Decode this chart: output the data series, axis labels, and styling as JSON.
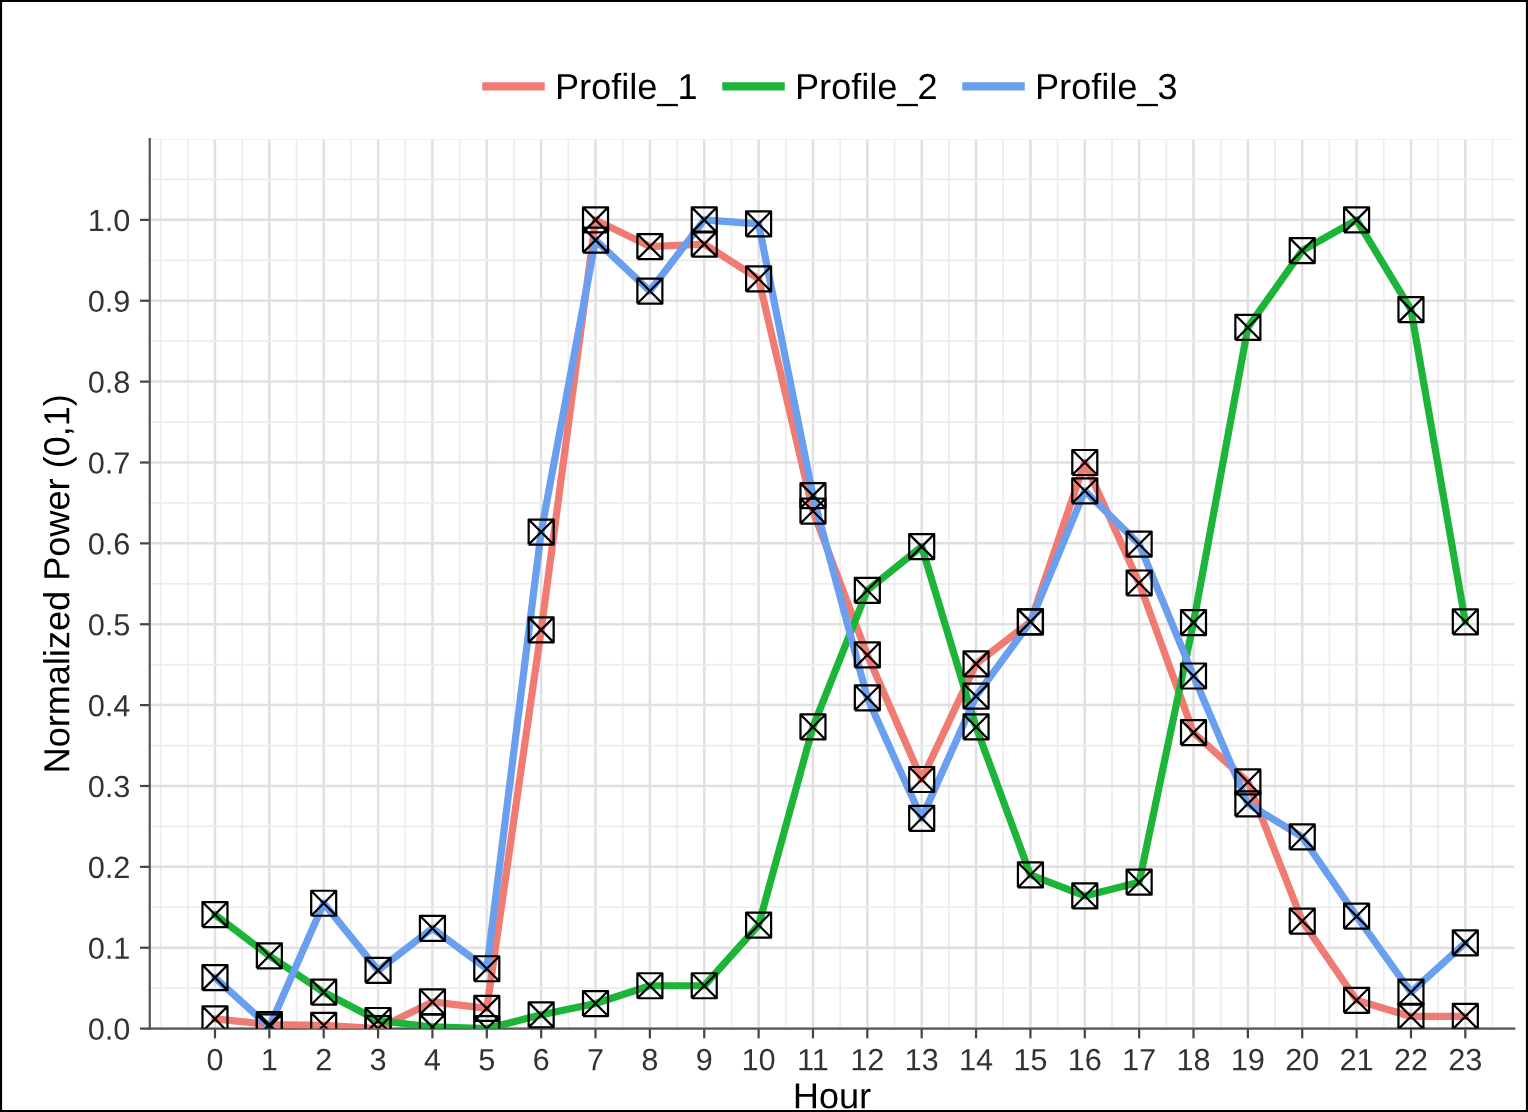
{
  "chart_data": {
    "type": "line",
    "xlabel": "Hour",
    "ylabel": "Normalized Power (0,1)",
    "x": [
      0,
      1,
      2,
      3,
      4,
      5,
      6,
      7,
      8,
      9,
      10,
      11,
      12,
      13,
      14,
      15,
      16,
      17,
      18,
      19,
      20,
      21,
      22,
      23
    ],
    "series": [
      {
        "name": "Profile_1",
        "color": "#f07b72",
        "values": [
          0.012,
          0.005,
          0.004,
          0.0,
          0.033,
          0.025,
          0.493,
          1.0,
          0.967,
          0.97,
          0.927,
          0.64,
          0.462,
          0.308,
          0.451,
          0.503,
          0.7,
          0.551,
          0.366,
          0.305,
          0.133,
          0.035,
          0.015,
          0.015
        ]
      },
      {
        "name": "Profile_2",
        "color": "#1db43a",
        "values": [
          0.141,
          0.09,
          0.045,
          0.01,
          0.002,
          0.0,
          0.017,
          0.031,
          0.053,
          0.053,
          0.128,
          0.373,
          0.542,
          0.596,
          0.373,
          0.19,
          0.164,
          0.181,
          0.502,
          0.867,
          0.962,
          1.0,
          0.889,
          0.503
        ]
      },
      {
        "name": "Profile_3",
        "color": "#6a9ff0",
        "values": [
          0.063,
          0.002,
          0.155,
          0.072,
          0.124,
          0.074,
          0.614,
          0.975,
          0.912,
          1.0,
          0.995,
          0.659,
          0.409,
          0.26,
          0.411,
          0.503,
          0.665,
          0.599,
          0.436,
          0.278,
          0.237,
          0.139,
          0.045,
          0.106
        ]
      }
    ],
    "xlim": [
      -1.2,
      23.9
    ],
    "xticks": [
      0,
      1,
      2,
      3,
      4,
      5,
      6,
      7,
      8,
      9,
      10,
      11,
      12,
      13,
      14,
      15,
      16,
      17,
      18,
      19,
      20,
      21,
      22,
      23
    ],
    "ylim": [
      0,
      1.1
    ],
    "yticks": [
      {
        "value": 0,
        "label": "0.0"
      },
      {
        "value": 0.1,
        "label": "0.1"
      },
      {
        "value": 0.2,
        "label": "0.2"
      },
      {
        "value": 0.3,
        "label": "0.3"
      },
      {
        "value": 0.4,
        "label": "0.4"
      },
      {
        "value": 0.5,
        "label": "0.5"
      },
      {
        "value": 0.6,
        "label": "0.6"
      },
      {
        "value": 0.7,
        "label": "0.7"
      },
      {
        "value": 0.8,
        "label": "0.8"
      },
      {
        "value": 0.9,
        "label": "0.9"
      },
      {
        "value": 1.0,
        "label": "1.0"
      }
    ],
    "grid": true,
    "legend": "top",
    "marker": "cross",
    "line_style": "solid"
  }
}
